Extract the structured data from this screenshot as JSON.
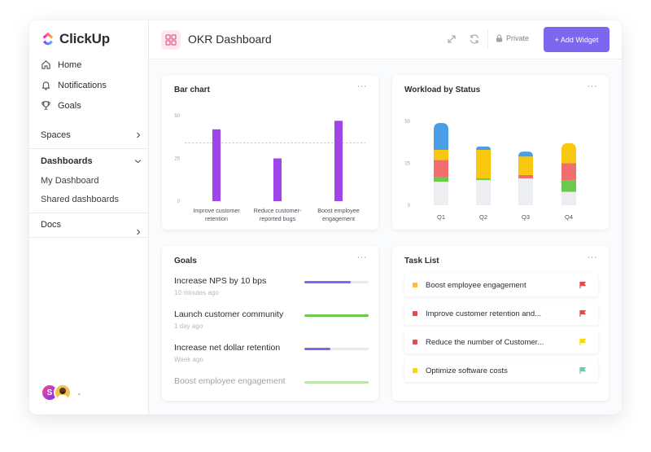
{
  "app": {
    "brand": "ClickUp",
    "accent": "#7b68ee"
  },
  "sidebar": {
    "nav": [
      {
        "label": "Home",
        "icon": "home-icon"
      },
      {
        "label": "Notifications",
        "icon": "bell-icon"
      },
      {
        "label": "Goals",
        "icon": "trophy-icon"
      }
    ],
    "spaces_label": "Spaces",
    "dashboards_label": "Dashboards",
    "dashboard_items": [
      "My Dashboard",
      "Shared dashboards"
    ],
    "docs_label": "Docs",
    "user_initial": "S"
  },
  "header": {
    "title": "OKR Dashboard",
    "private_label": "Private",
    "add_widget_label": "+ Add Widget"
  },
  "bar_card": {
    "title": "Bar chart",
    "menu": "···"
  },
  "workload_card": {
    "title": "Workload by Status",
    "menu": "···"
  },
  "goals_card": {
    "title": "Goals",
    "menu": "···",
    "items": [
      {
        "name": "Increase NPS by 10 bps",
        "time": "10 minutes ago",
        "progress": 0.72,
        "color": "#7b68ee"
      },
      {
        "name": "Launch customer community",
        "time": "1 day ago",
        "progress": 1.0,
        "color": "#6bc950"
      },
      {
        "name": "Increase net dollar retention",
        "time": "Week ago",
        "progress": 0.4,
        "color": "#7b68ee"
      },
      {
        "name": "Boost employee engagement",
        "time": "",
        "progress": 1.0,
        "color": "#6bc950"
      }
    ]
  },
  "task_card": {
    "title": "Task List",
    "menu": "···",
    "items": [
      {
        "name": "Boost employee engagement",
        "color": "#f9be33",
        "flag": "#e5484d"
      },
      {
        "name": "Improve customer retention and...",
        "color": "#e5484d",
        "flag": "#e5484d"
      },
      {
        "name": "Reduce the number of Customer...",
        "color": "#e5484d",
        "flag": "#f9d900"
      },
      {
        "name": "Optimize software costs",
        "color": "#f9d900",
        "flag": "#6bc9a8"
      }
    ]
  },
  "chart_data": [
    {
      "type": "bar",
      "title": "Bar chart",
      "categories": [
        [
          "Improve customer",
          "retention"
        ],
        [
          "Reduce customer-",
          "reported bugs"
        ],
        [
          "Boost employee",
          "engagement"
        ]
      ],
      "values": [
        42,
        25,
        47
      ],
      "target": 34,
      "ylim": [
        0,
        50
      ],
      "yticks": [
        "0",
        "25",
        "50"
      ],
      "color": "#a045e8"
    },
    {
      "type": "bar",
      "title": "Workload by Status",
      "stacked": true,
      "categories": [
        "Q1",
        "Q2",
        "Q3",
        "Q4"
      ],
      "ylim": [
        0,
        50
      ],
      "yticks": [
        "0",
        "25",
        "50"
      ],
      "segments": [
        {
          "color": "#eceef2",
          "values": [
            14,
            15,
            16,
            8
          ]
        },
        {
          "color": "#6bc950",
          "values": [
            3,
            1,
            0,
            7
          ]
        },
        {
          "color": "#f26e6e",
          "values": [
            10,
            0,
            2,
            10
          ]
        },
        {
          "color": "#f9c80e",
          "values": [
            6,
            17,
            11,
            12
          ]
        },
        {
          "color": "#4a9ee5",
          "values": [
            16,
            2,
            3,
            0
          ]
        }
      ]
    }
  ]
}
